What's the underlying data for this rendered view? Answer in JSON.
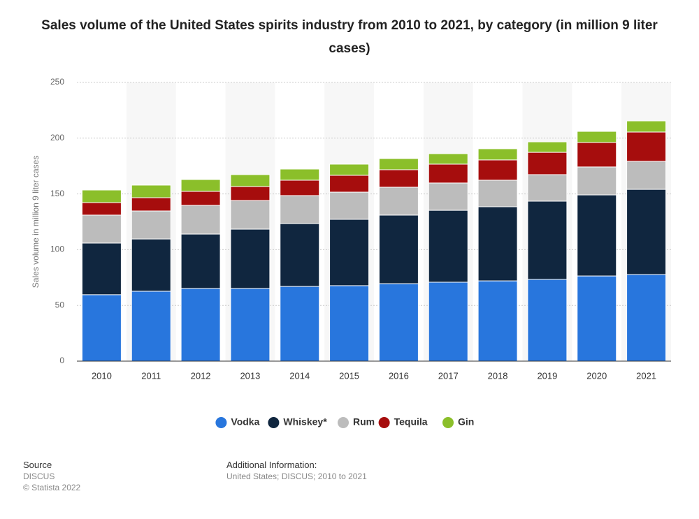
{
  "chart_data": {
    "type": "stacked-bar",
    "title": "Sales volume of the United States spirits industry from 2010 to 2021, by category (in million 9 liter cases)",
    "y_label": "Sales volume in million 9 liter cases",
    "categories": [
      "2010",
      "2011",
      "2012",
      "2013",
      "2014",
      "2015",
      "2016",
      "2017",
      "2018",
      "2019",
      "2020",
      "2021"
    ],
    "series": [
      {
        "name": "Vodka",
        "color": "#2876dd",
        "values": [
          59.6,
          62.7,
          65.2,
          65.2,
          67,
          67.7,
          69.5,
          70.8,
          72,
          73.3,
          76.4,
          77.7
        ]
      },
      {
        "name": "Whiskey*",
        "color": "#10263f",
        "values": [
          46.3,
          46.9,
          48.8,
          53.2,
          56.4,
          59.5,
          61.5,
          64.5,
          66.5,
          70.2,
          72.7,
          76.4
        ]
      },
      {
        "name": "Rum",
        "color": "#bcbcbc",
        "values": [
          25.1,
          25.1,
          25.7,
          25.7,
          25.1,
          24.4,
          25,
          24.5,
          23.8,
          23.8,
          25.1,
          25.1
        ]
      },
      {
        "name": "Tequila",
        "color": "#a60d0d",
        "values": [
          11.2,
          11.9,
          12.6,
          12.5,
          13.8,
          15.1,
          15.7,
          16.9,
          18.2,
          20,
          21.9,
          26.3
        ]
      },
      {
        "name": "Gin",
        "color": "#8bbf2a",
        "values": [
          11.3,
          11.3,
          10.6,
          10.7,
          10,
          10,
          10,
          9.4,
          10,
          9.4,
          10,
          10
        ]
      }
    ],
    "ylim": [
      0,
      250
    ],
    "yticks": [
      0,
      50,
      100,
      150,
      200,
      250
    ],
    "grid": true,
    "legend": "bottom"
  },
  "footer": {
    "source_label": "Source",
    "source": "DISCUS",
    "copyright": "© Statista 2022",
    "info_label": "Additional Information:",
    "info": "United States; DISCUS; 2010 to 2021"
  }
}
